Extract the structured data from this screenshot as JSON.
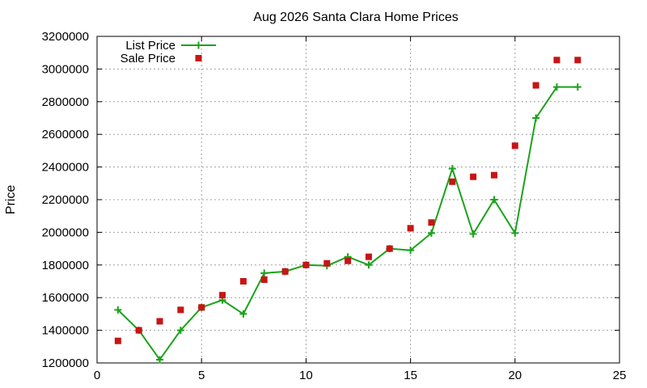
{
  "chart_data": {
    "type": "line",
    "title": "Aug 2026 Santa Clara Home Prices",
    "xlabel": "",
    "ylabel": "Price",
    "xlim": [
      0,
      25
    ],
    "ylim": [
      1200000,
      3200000
    ],
    "x_ticks": [
      "0",
      "5",
      "10",
      "15",
      "20",
      "25"
    ],
    "y_ticks": [
      "1200000",
      "1400000",
      "1600000",
      "1800000",
      "2000000",
      "2200000",
      "2400000",
      "2600000",
      "2800000",
      "3000000",
      "3200000"
    ],
    "grid": true,
    "legend_position": "top-left",
    "series": [
      {
        "name": "List Price",
        "style": "line-with-plus-markers",
        "color": "#1aa31a",
        "x": [
          1,
          2,
          3,
          4,
          5,
          6,
          7,
          8,
          9,
          10,
          11,
          12,
          13,
          14,
          15,
          16,
          17,
          18,
          19,
          20,
          21,
          22,
          23
        ],
        "values": [
          1525000,
          1400000,
          1220000,
          1400000,
          1540000,
          1585000,
          1500000,
          1750000,
          1760000,
          1800000,
          1795000,
          1850000,
          1800000,
          1900000,
          1890000,
          1995000,
          2390000,
          1990000,
          2200000,
          1995000,
          2700000,
          2890000,
          2890000
        ]
      },
      {
        "name": "Sale Price",
        "style": "square-markers",
        "color": "#c81414",
        "x": [
          1,
          2,
          3,
          4,
          5,
          6,
          7,
          8,
          9,
          10,
          11,
          12,
          13,
          14,
          15,
          16,
          17,
          18,
          19,
          20,
          21,
          22,
          23
        ],
        "values": [
          1335000,
          1400000,
          1455000,
          1525000,
          1540000,
          1615000,
          1700000,
          1710000,
          1760000,
          1800000,
          1810000,
          1825000,
          1850000,
          1900000,
          2025000,
          2060000,
          2310000,
          2340000,
          2350000,
          2530000,
          2900000,
          3055000,
          3055000
        ]
      }
    ]
  }
}
